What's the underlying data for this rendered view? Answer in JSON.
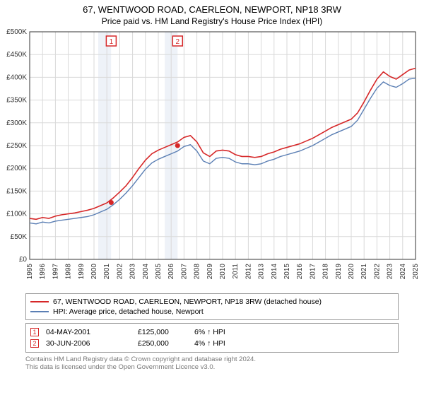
{
  "title": "67, WENTWOOD ROAD, CAERLEON, NEWPORT, NP18 3RW",
  "subtitle": "Price paid vs. HM Land Registry's House Price Index (HPI)",
  "chart": {
    "type": "line",
    "background": "#ffffff",
    "grid_color": "#d9d9d9",
    "axis_color": "#333333",
    "label_fontsize": 10,
    "xlim": [
      1995,
      2025
    ],
    "ylim": [
      0,
      500
    ],
    "ytick_step": 50,
    "yticks_labels": [
      "£0",
      "£50K",
      "£100K",
      "£150K",
      "£200K",
      "£250K",
      "£300K",
      "£350K",
      "£400K",
      "£450K",
      "£500K"
    ],
    "xticks": [
      1995,
      1996,
      1997,
      1998,
      1999,
      2000,
      2001,
      2002,
      2003,
      2004,
      2005,
      2006,
      2007,
      2008,
      2009,
      2010,
      2011,
      2012,
      2013,
      2014,
      2015,
      2016,
      2017,
      2018,
      2019,
      2020,
      2021,
      2022,
      2023,
      2024,
      2025
    ],
    "band_years": [
      [
        2000.33,
        2001.33
      ],
      [
        2005.5,
        2006.5
      ]
    ],
    "band_color": "#eef2f8",
    "series": [
      {
        "name": "property",
        "label": "67, WENTWOOD ROAD, CAERLEON, NEWPORT, NP18 3RW (detached house)",
        "color": "#d62728",
        "width": 1.6,
        "data": [
          [
            1995,
            90
          ],
          [
            1995.5,
            88
          ],
          [
            1996,
            92
          ],
          [
            1996.5,
            90
          ],
          [
            1997,
            95
          ],
          [
            1997.5,
            98
          ],
          [
            1998,
            100
          ],
          [
            1998.5,
            102
          ],
          [
            1999,
            105
          ],
          [
            1999.5,
            108
          ],
          [
            2000,
            112
          ],
          [
            2000.5,
            118
          ],
          [
            2001,
            124
          ],
          [
            2001.5,
            135
          ],
          [
            2002,
            148
          ],
          [
            2002.5,
            162
          ],
          [
            2003,
            180
          ],
          [
            2003.5,
            200
          ],
          [
            2004,
            218
          ],
          [
            2004.5,
            232
          ],
          [
            2005,
            240
          ],
          [
            2005.5,
            246
          ],
          [
            2006,
            252
          ],
          [
            2006.5,
            258
          ],
          [
            2007,
            268
          ],
          [
            2007.5,
            272
          ],
          [
            2008,
            258
          ],
          [
            2008.5,
            234
          ],
          [
            2009,
            226
          ],
          [
            2009.5,
            238
          ],
          [
            2010,
            240
          ],
          [
            2010.5,
            238
          ],
          [
            2011,
            230
          ],
          [
            2011.5,
            226
          ],
          [
            2012,
            226
          ],
          [
            2012.5,
            224
          ],
          [
            2013,
            226
          ],
          [
            2013.5,
            232
          ],
          [
            2014,
            236
          ],
          [
            2014.5,
            242
          ],
          [
            2015,
            246
          ],
          [
            2015.5,
            250
          ],
          [
            2016,
            254
          ],
          [
            2016.5,
            260
          ],
          [
            2017,
            266
          ],
          [
            2017.5,
            274
          ],
          [
            2018,
            282
          ],
          [
            2018.5,
            290
          ],
          [
            2019,
            296
          ],
          [
            2019.5,
            302
          ],
          [
            2020,
            308
          ],
          [
            2020.5,
            322
          ],
          [
            2021,
            346
          ],
          [
            2021.5,
            372
          ],
          [
            2022,
            396
          ],
          [
            2022.5,
            412
          ],
          [
            2023,
            402
          ],
          [
            2023.5,
            396
          ],
          [
            2024,
            406
          ],
          [
            2024.5,
            416
          ],
          [
            2025,
            420
          ]
        ]
      },
      {
        "name": "hpi",
        "label": "HPI: Average price, detached house, Newport",
        "color": "#5b7fb4",
        "width": 1.4,
        "data": [
          [
            1995,
            80
          ],
          [
            1995.5,
            78
          ],
          [
            1996,
            82
          ],
          [
            1996.5,
            80
          ],
          [
            1997,
            84
          ],
          [
            1997.5,
            86
          ],
          [
            1998,
            88
          ],
          [
            1998.5,
            90
          ],
          [
            1999,
            92
          ],
          [
            1999.5,
            94
          ],
          [
            2000,
            98
          ],
          [
            2000.5,
            104
          ],
          [
            2001,
            110
          ],
          [
            2001.5,
            120
          ],
          [
            2002,
            132
          ],
          [
            2002.5,
            146
          ],
          [
            2003,
            162
          ],
          [
            2003.5,
            180
          ],
          [
            2004,
            198
          ],
          [
            2004.5,
            212
          ],
          [
            2005,
            220
          ],
          [
            2005.5,
            226
          ],
          [
            2006,
            232
          ],
          [
            2006.5,
            238
          ],
          [
            2007,
            248
          ],
          [
            2007.5,
            252
          ],
          [
            2008,
            238
          ],
          [
            2008.5,
            216
          ],
          [
            2009,
            210
          ],
          [
            2009.5,
            222
          ],
          [
            2010,
            224
          ],
          [
            2010.5,
            222
          ],
          [
            2011,
            214
          ],
          [
            2011.5,
            210
          ],
          [
            2012,
            210
          ],
          [
            2012.5,
            208
          ],
          [
            2013,
            210
          ],
          [
            2013.5,
            216
          ],
          [
            2014,
            220
          ],
          [
            2014.5,
            226
          ],
          [
            2015,
            230
          ],
          [
            2015.5,
            234
          ],
          [
            2016,
            238
          ],
          [
            2016.5,
            244
          ],
          [
            2017,
            250
          ],
          [
            2017.5,
            258
          ],
          [
            2018,
            266
          ],
          [
            2018.5,
            274
          ],
          [
            2019,
            280
          ],
          [
            2019.5,
            286
          ],
          [
            2020,
            292
          ],
          [
            2020.5,
            306
          ],
          [
            2021,
            330
          ],
          [
            2021.5,
            354
          ],
          [
            2022,
            376
          ],
          [
            2022.5,
            390
          ],
          [
            2023,
            382
          ],
          [
            2023.5,
            378
          ],
          [
            2024,
            386
          ],
          [
            2024.5,
            396
          ],
          [
            2025,
            398
          ]
        ]
      }
    ],
    "markers": [
      {
        "id": "1",
        "x": 2001.34,
        "y": 125,
        "color": "#d62728"
      },
      {
        "id": "2",
        "x": 2006.5,
        "y": 250,
        "color": "#d62728"
      }
    ]
  },
  "legend": {
    "border_color": "#999999"
  },
  "sales_table": {
    "border_color": "#999999",
    "rows": [
      {
        "marker": "1",
        "marker_color": "#d62728",
        "date": "04-MAY-2001",
        "price": "£125,000",
        "hpi": "6% ↑ HPI"
      },
      {
        "marker": "2",
        "marker_color": "#d62728",
        "date": "30-JUN-2006",
        "price": "£250,000",
        "hpi": "4% ↑ HPI"
      }
    ]
  },
  "footnote_line1": "Contains HM Land Registry data © Crown copyright and database right 2024.",
  "footnote_line2": "This data is licensed under the Open Government Licence v3.0."
}
